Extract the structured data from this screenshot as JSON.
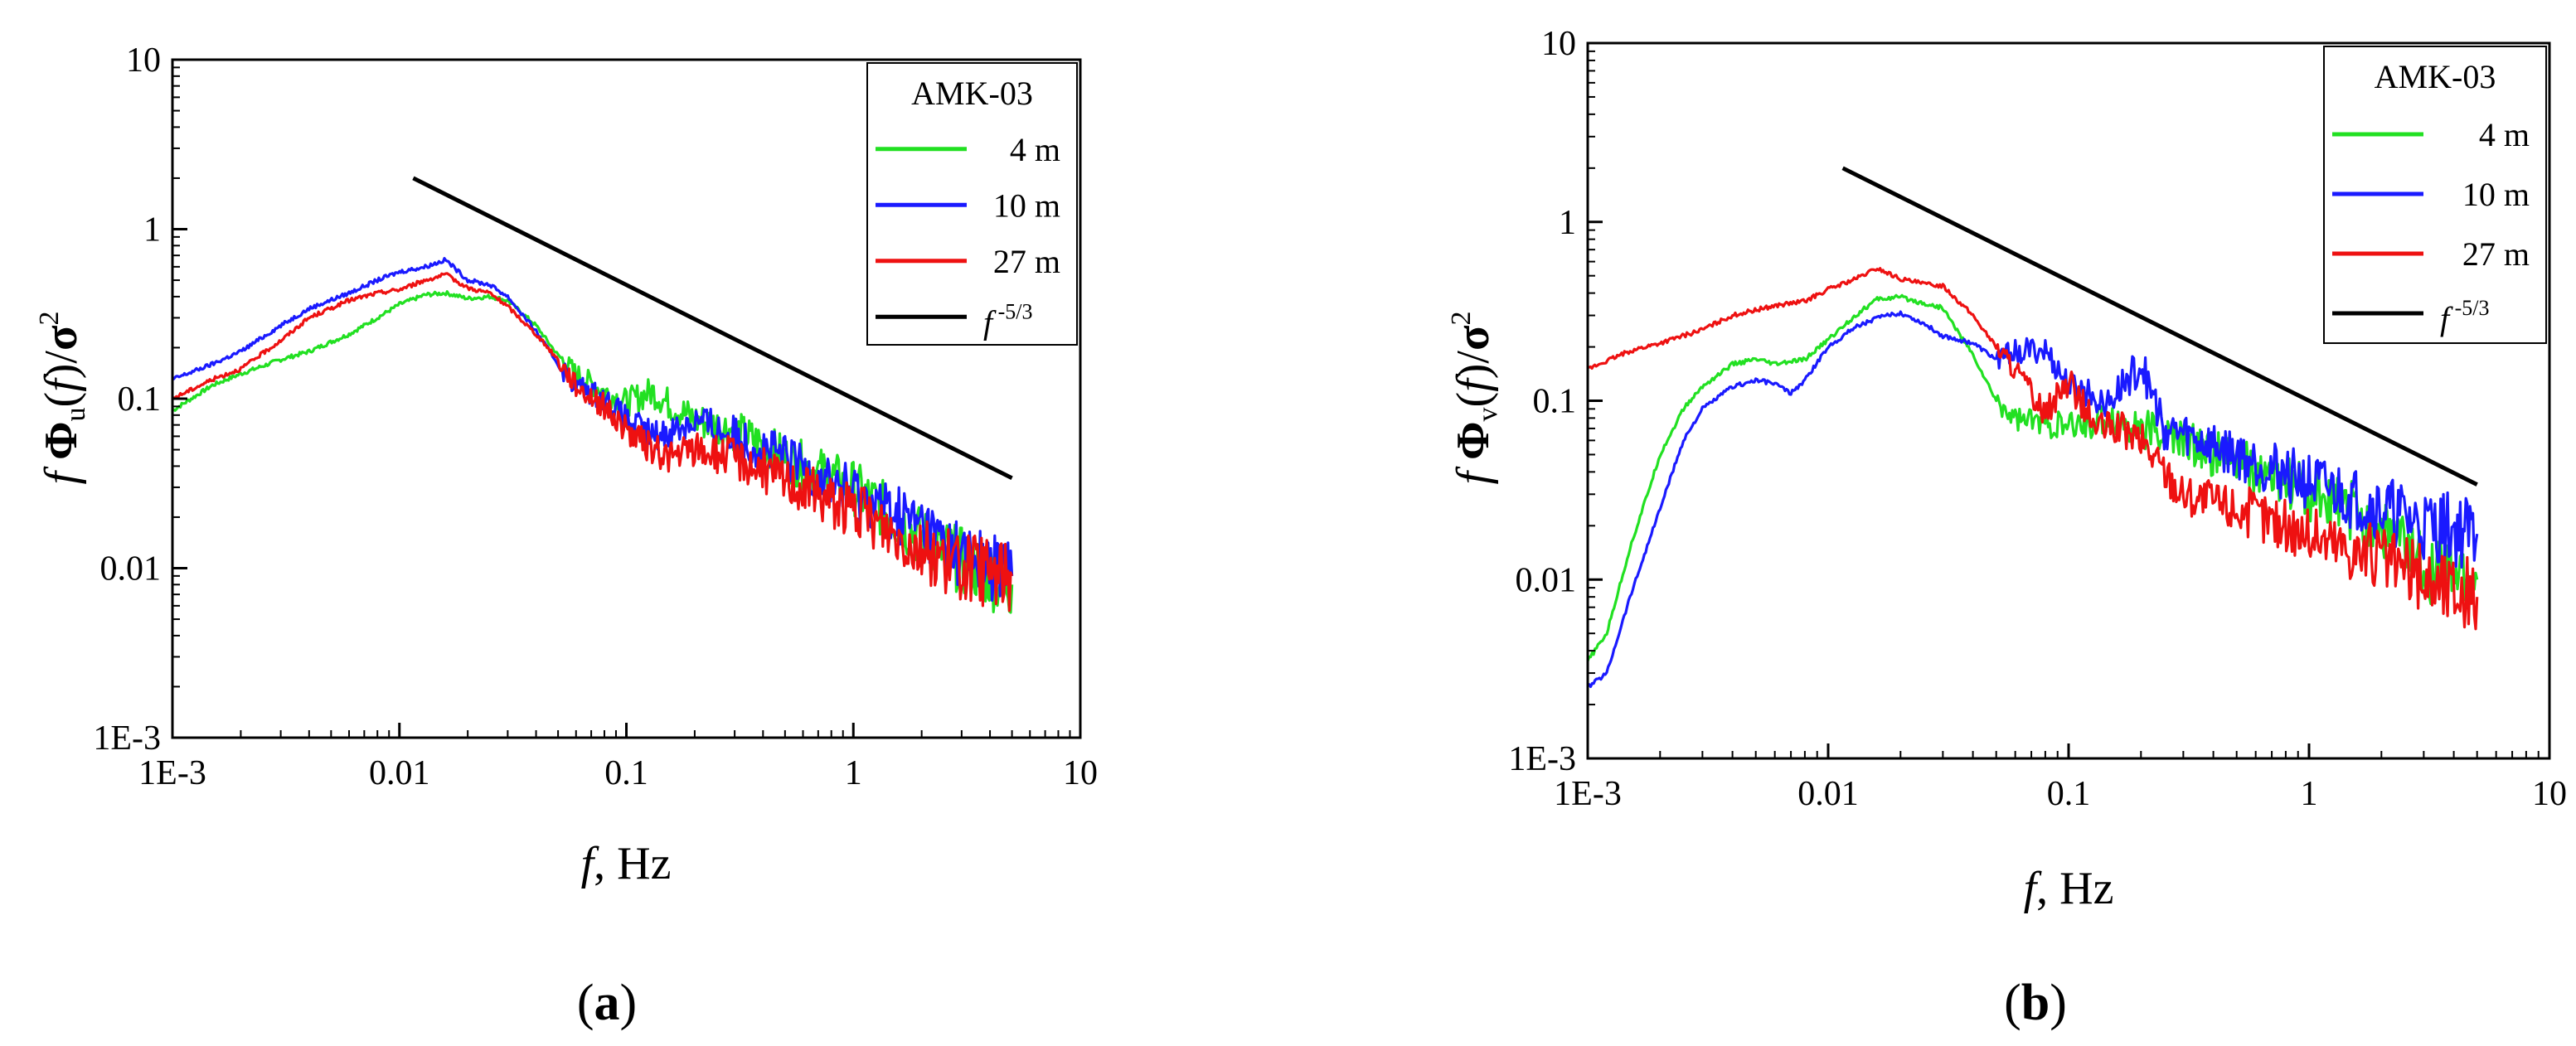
{
  "chart_data": [
    {
      "panel_label": "(a)",
      "panel_letter": "a",
      "type": "line",
      "xscale": "log",
      "yscale": "log",
      "xlim": [
        0.001,
        10
      ],
      "ylim": [
        0.001,
        10
      ],
      "xticks": [
        "1E-3",
        "0.01",
        "0.1",
        "1",
        "10"
      ],
      "yticks": [
        "1E-3",
        "0.01",
        "0.1",
        "1",
        "10"
      ],
      "xlabel": "f, Hz",
      "ylabel": "f Φu(f)/σ²",
      "ylabel_subscript": "u",
      "legend_title": "AMK-03",
      "legend_position": "top-right",
      "series": [
        {
          "name": "4 m",
          "color": "#22e022",
          "x": [
            0.001,
            0.0015,
            0.002,
            0.003,
            0.004,
            0.006,
            0.008,
            0.01,
            0.013,
            0.016,
            0.02,
            0.025,
            0.03,
            0.04,
            0.05,
            0.06,
            0.08,
            0.1,
            0.13,
            0.16,
            0.2,
            0.3,
            0.5,
            1,
            2,
            3,
            5
          ],
          "y": [
            0.085,
            0.12,
            0.14,
            0.17,
            0.19,
            0.24,
            0.3,
            0.36,
            0.41,
            0.42,
            0.39,
            0.4,
            0.38,
            0.27,
            0.18,
            0.14,
            0.11,
            0.095,
            0.11,
            0.09,
            0.075,
            0.065,
            0.045,
            0.03,
            0.015,
            0.011,
            0.008
          ]
        },
        {
          "name": "10 m",
          "color": "#1a1aff",
          "x": [
            0.001,
            0.0015,
            0.002,
            0.003,
            0.004,
            0.006,
            0.008,
            0.01,
            0.013,
            0.016,
            0.02,
            0.025,
            0.03,
            0.04,
            0.05,
            0.06,
            0.08,
            0.1,
            0.13,
            0.16,
            0.2,
            0.3,
            0.5,
            1,
            2,
            3,
            5
          ],
          "y": [
            0.13,
            0.16,
            0.19,
            0.27,
            0.34,
            0.42,
            0.5,
            0.56,
            0.6,
            0.66,
            0.5,
            0.47,
            0.4,
            0.25,
            0.16,
            0.12,
            0.1,
            0.075,
            0.06,
            0.065,
            0.075,
            0.06,
            0.045,
            0.028,
            0.018,
            0.012,
            0.009
          ]
        },
        {
          "name": "27 m",
          "color": "#ee1111",
          "x": [
            0.001,
            0.0015,
            0.002,
            0.003,
            0.004,
            0.006,
            0.008,
            0.01,
            0.013,
            0.016,
            0.02,
            0.025,
            0.03,
            0.04,
            0.05,
            0.06,
            0.08,
            0.1,
            0.13,
            0.16,
            0.2,
            0.3,
            0.5,
            1,
            2,
            3,
            5
          ],
          "y": [
            0.1,
            0.13,
            0.15,
            0.22,
            0.3,
            0.38,
            0.42,
            0.44,
            0.5,
            0.54,
            0.45,
            0.42,
            0.35,
            0.24,
            0.17,
            0.12,
            0.09,
            0.065,
            0.05,
            0.045,
            0.05,
            0.045,
            0.033,
            0.022,
            0.013,
            0.01,
            0.009
          ]
        },
        {
          "name": "f -5/3",
          "color": "#000000",
          "x": [
            0.0115,
            5
          ],
          "y": [
            2.0,
            0.034
          ]
        }
      ]
    },
    {
      "panel_label": "(b)",
      "panel_letter": "b",
      "type": "line",
      "xscale": "log",
      "yscale": "log",
      "xlim": [
        0.001,
        10
      ],
      "ylim": [
        0.001,
        10
      ],
      "xticks": [
        "1E-3",
        "0.01",
        "0.1",
        "1",
        "10"
      ],
      "yticks": [
        "1E-3",
        "0.01",
        "0.1",
        "1",
        "10"
      ],
      "xlabel": "f, Hz",
      "ylabel": "f Φv(f)/σ²",
      "ylabel_subscript": "v",
      "legend_title": "AMK-03",
      "legend_position": "top-right",
      "series": [
        {
          "name": "4 m",
          "color": "#22e022",
          "x": [
            0.001,
            0.0012,
            0.0015,
            0.002,
            0.0025,
            0.003,
            0.004,
            0.005,
            0.006,
            0.008,
            0.01,
            0.013,
            0.016,
            0.02,
            0.025,
            0.03,
            0.04,
            0.05,
            0.06,
            0.08,
            0.1,
            0.15,
            0.2,
            0.3,
            0.5,
            1,
            2,
            3,
            5
          ],
          "y": [
            0.0035,
            0.005,
            0.015,
            0.05,
            0.09,
            0.12,
            0.16,
            0.17,
            0.16,
            0.17,
            0.22,
            0.3,
            0.37,
            0.38,
            0.35,
            0.33,
            0.18,
            0.1,
            0.08,
            0.075,
            0.07,
            0.08,
            0.07,
            0.06,
            0.045,
            0.03,
            0.02,
            0.012,
            0.01
          ]
        },
        {
          "name": "10 m",
          "color": "#1a1aff",
          "x": [
            0.001,
            0.0012,
            0.0015,
            0.002,
            0.0025,
            0.003,
            0.004,
            0.005,
            0.006,
            0.007,
            0.008,
            0.01,
            0.013,
            0.016,
            0.02,
            0.025,
            0.03,
            0.04,
            0.05,
            0.06,
            0.08,
            0.1,
            0.15,
            0.2,
            0.25,
            0.3,
            0.5,
            1,
            2,
            3,
            5
          ],
          "y": [
            0.0025,
            0.003,
            0.008,
            0.025,
            0.06,
            0.09,
            0.12,
            0.13,
            0.125,
            0.11,
            0.13,
            0.2,
            0.26,
            0.29,
            0.31,
            0.27,
            0.23,
            0.21,
            0.17,
            0.19,
            0.19,
            0.12,
            0.1,
            0.16,
            0.07,
            0.065,
            0.05,
            0.035,
            0.025,
            0.02,
            0.018
          ]
        },
        {
          "name": "27 m",
          "color": "#ee1111",
          "x": [
            0.001,
            0.0015,
            0.002,
            0.003,
            0.004,
            0.006,
            0.008,
            0.01,
            0.013,
            0.016,
            0.02,
            0.025,
            0.03,
            0.04,
            0.05,
            0.06,
            0.08,
            0.1,
            0.13,
            0.16,
            0.2,
            0.3,
            0.5,
            1,
            2,
            3,
            5
          ],
          "y": [
            0.15,
            0.19,
            0.21,
            0.25,
            0.3,
            0.34,
            0.36,
            0.42,
            0.48,
            0.55,
            0.48,
            0.45,
            0.44,
            0.3,
            0.2,
            0.15,
            0.085,
            0.13,
            0.07,
            0.07,
            0.06,
            0.03,
            0.025,
            0.018,
            0.013,
            0.01,
            0.008
          ]
        },
        {
          "name": "f -5/3",
          "color": "#000000",
          "x": [
            0.0115,
            5
          ],
          "y": [
            2.0,
            0.034
          ]
        }
      ]
    }
  ]
}
